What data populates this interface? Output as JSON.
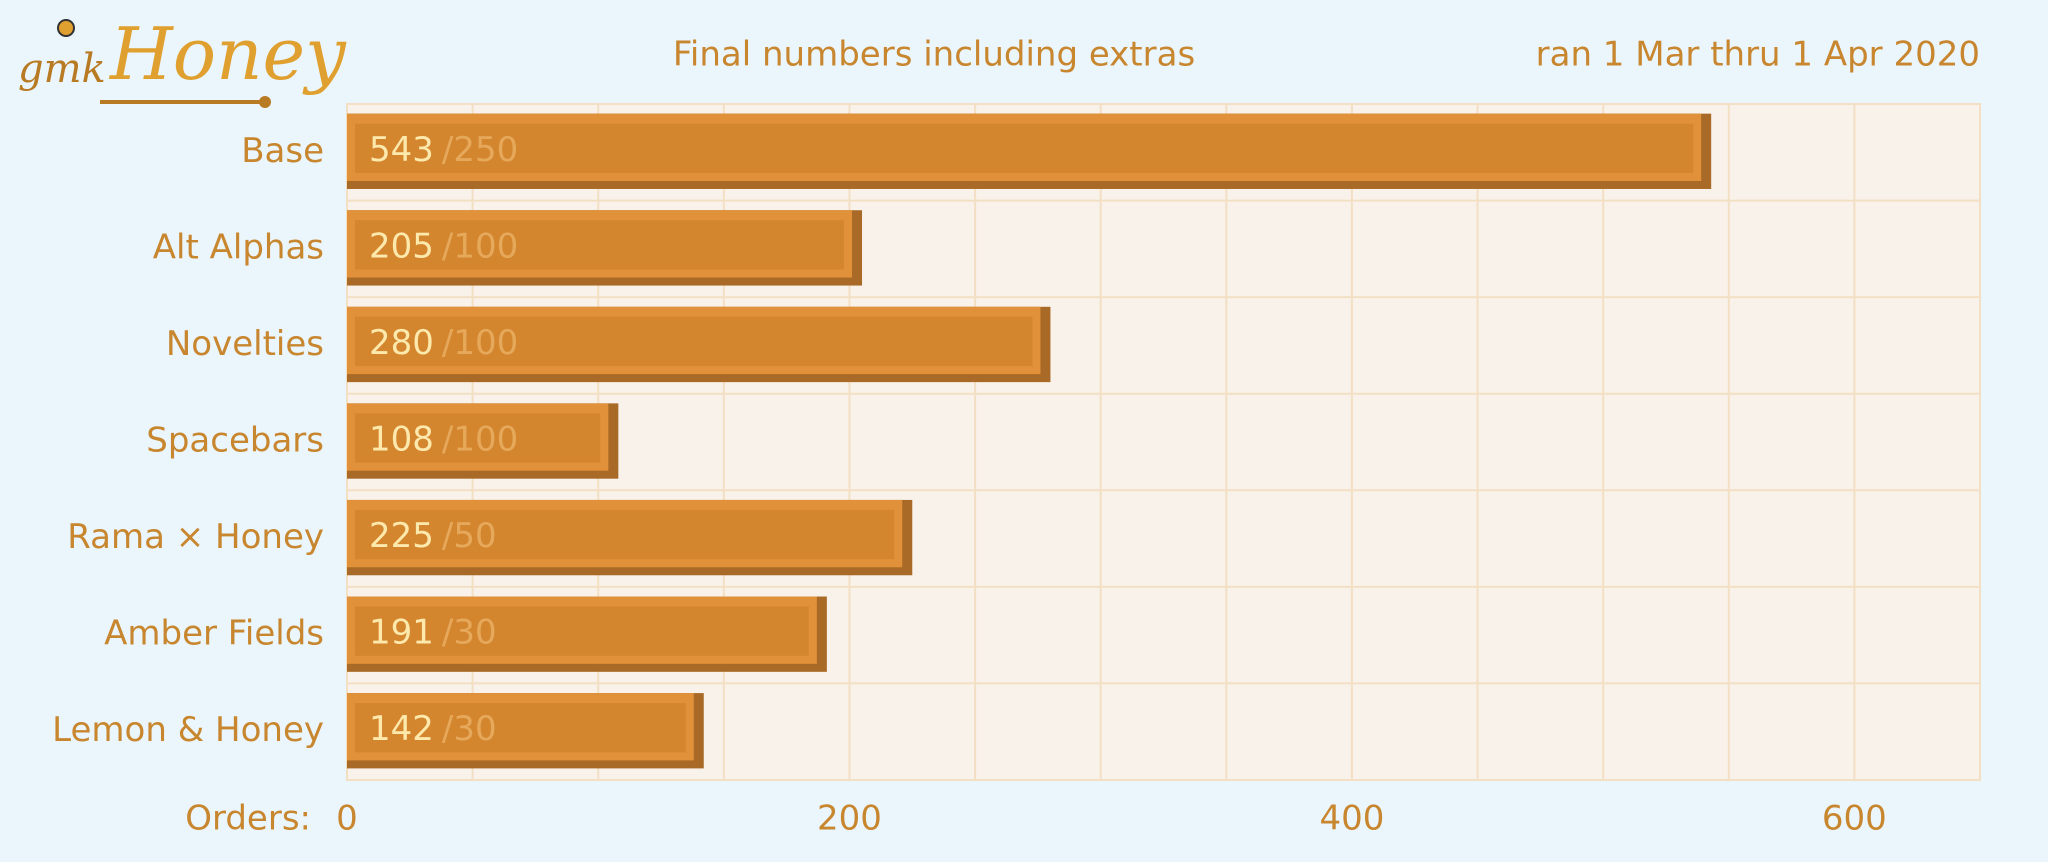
{
  "logo": {
    "prefix": "gmk",
    "name": "Honey"
  },
  "chart_data": {
    "type": "bar",
    "orientation": "horizontal",
    "title": "Final numbers including extras",
    "subtitle": "ran 1 Mar thru 1 Apr 2020",
    "x_label": "Orders:",
    "categories": [
      "Base",
      "Alt Alphas",
      "Novelties",
      "Spacebars",
      "Rama × Honey",
      "Amber Fields",
      "Lemon & Honey"
    ],
    "values": [
      543,
      205,
      280,
      108,
      225,
      191,
      142
    ],
    "color": "#d4862f",
    "targets": {
      "values": [
        250,
        100,
        100,
        100,
        50,
        30,
        30
      ],
      "value_labels": [
        "/250",
        "/100",
        "/100",
        "/100",
        "/50",
        "/30",
        "/30"
      ]
    },
    "xlim": [
      0,
      650
    ],
    "xticks": [
      0,
      200,
      400,
      600
    ],
    "xgrid": [
      50,
      100,
      150,
      200,
      250,
      300,
      350,
      400,
      450,
      500,
      550,
      600
    ],
    "grid": true
  }
}
